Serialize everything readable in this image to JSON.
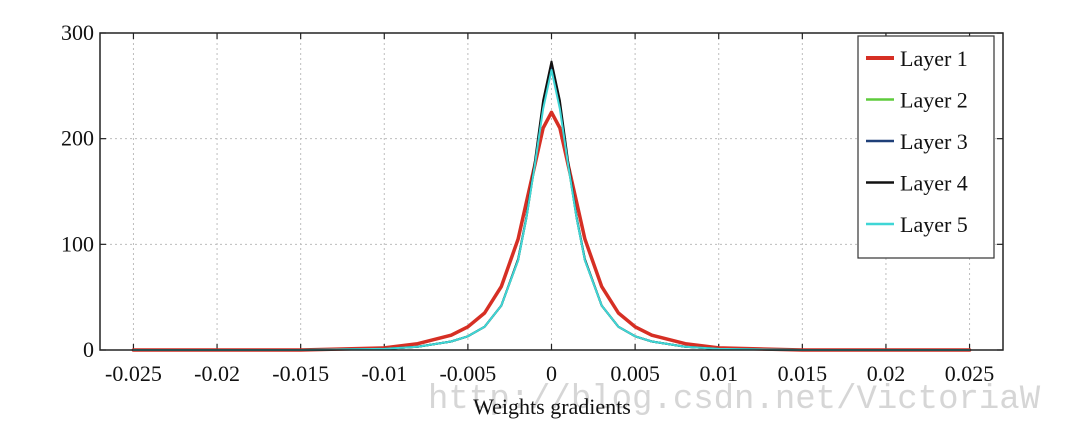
{
  "chart_data": {
    "type": "line",
    "xlabel": "Weights gradients",
    "ylabel": "",
    "xlim": [
      -0.027,
      0.027
    ],
    "ylim": [
      0,
      300
    ],
    "grid": true,
    "legend_position": "top-right",
    "x_ticks": [
      -0.025,
      -0.02,
      -0.015,
      -0.01,
      -0.005,
      0,
      0.005,
      0.01,
      0.015,
      0.02,
      0.025
    ],
    "x_tick_labels": [
      "-0.025",
      "-0.02",
      "-0.015",
      "-0.01",
      "-0.005",
      "0",
      "0.005",
      "0.01",
      "0.015",
      "0.02",
      "0.025"
    ],
    "y_ticks": [
      0,
      100,
      200,
      300
    ],
    "y_tick_labels": [
      "0",
      "100",
      "200",
      "300"
    ],
    "x": [
      -0.025,
      -0.015,
      -0.01,
      -0.008,
      -0.006,
      -0.005,
      -0.004,
      -0.003,
      -0.002,
      -0.0015,
      -0.001,
      -0.0005,
      0,
      0.0005,
      0.001,
      0.0015,
      0.002,
      0.003,
      0.004,
      0.005,
      0.006,
      0.008,
      0.01,
      0.015,
      0.025
    ],
    "series": [
      {
        "name": "Layer 1",
        "color": "#d62f24",
        "width": 3.5,
        "values": [
          0,
          0,
          2,
          6,
          14,
          22,
          35,
          60,
          105,
          140,
          175,
          210,
          225,
          210,
          175,
          140,
          105,
          60,
          35,
          22,
          14,
          6,
          2,
          0,
          0
        ]
      },
      {
        "name": "Layer 2",
        "color": "#5ecb3c",
        "width": 2,
        "values": [
          0,
          0,
          1,
          3,
          8,
          13,
          22,
          42,
          85,
          125,
          175,
          230,
          268,
          230,
          175,
          125,
          85,
          42,
          22,
          13,
          8,
          3,
          1,
          0,
          0
        ]
      },
      {
        "name": "Layer 3",
        "color": "#1f3f78",
        "width": 2,
        "values": [
          0,
          0,
          1,
          3,
          8,
          13,
          22,
          42,
          85,
          125,
          176,
          232,
          270,
          232,
          176,
          125,
          85,
          42,
          22,
          13,
          8,
          3,
          1,
          0,
          0
        ]
      },
      {
        "name": "Layer 4",
        "color": "#111111",
        "width": 2,
        "values": [
          0,
          0,
          1,
          3,
          8,
          13,
          22,
          42,
          86,
          126,
          178,
          236,
          273,
          236,
          178,
          126,
          86,
          42,
          22,
          13,
          8,
          3,
          1,
          0,
          0
        ]
      },
      {
        "name": "Layer 5",
        "color": "#3fd6d6",
        "width": 2,
        "values": [
          0,
          0,
          1,
          3,
          8,
          13,
          22,
          42,
          85,
          125,
          175,
          228,
          265,
          228,
          175,
          125,
          85,
          42,
          22,
          13,
          8,
          3,
          1,
          0,
          0
        ]
      }
    ]
  },
  "watermark": "http://blog.csdn.net/VictoriaW"
}
